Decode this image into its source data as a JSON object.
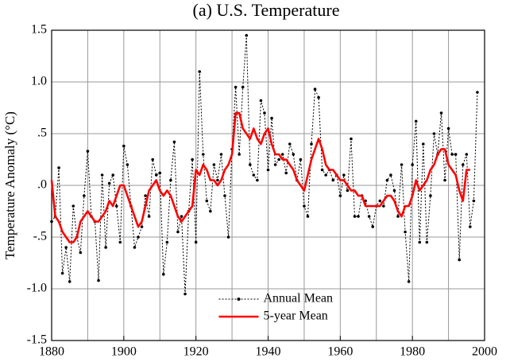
{
  "chart_data": {
    "type": "line",
    "title": "(a)  U.S. Temperature",
    "y_label": "Temperature Anomaly (°C)",
    "x": [
      1880,
      1881,
      1882,
      1883,
      1884,
      1885,
      1886,
      1887,
      1888,
      1889,
      1890,
      1891,
      1892,
      1893,
      1894,
      1895,
      1896,
      1897,
      1898,
      1899,
      1900,
      1901,
      1902,
      1903,
      1904,
      1905,
      1906,
      1907,
      1908,
      1909,
      1910,
      1911,
      1912,
      1913,
      1914,
      1915,
      1916,
      1917,
      1918,
      1919,
      1920,
      1921,
      1922,
      1923,
      1924,
      1925,
      1926,
      1927,
      1928,
      1929,
      1930,
      1931,
      1932,
      1933,
      1934,
      1935,
      1936,
      1937,
      1938,
      1939,
      1940,
      1941,
      1942,
      1943,
      1944,
      1945,
      1946,
      1947,
      1948,
      1949,
      1950,
      1951,
      1952,
      1953,
      1954,
      1955,
      1956,
      1957,
      1958,
      1959,
      1960,
      1961,
      1962,
      1963,
      1964,
      1965,
      1966,
      1967,
      1968,
      1969,
      1970,
      1971,
      1972,
      1973,
      1974,
      1975,
      1976,
      1977,
      1978,
      1979,
      1980,
      1981,
      1982,
      1983,
      1984,
      1985,
      1986,
      1987,
      1988,
      1989,
      1990,
      1991,
      1992,
      1993,
      1994,
      1995,
      1996,
      1997,
      1998
    ],
    "series": [
      {
        "name": "Annual Mean",
        "color": "#000000",
        "style": "dotted-markers",
        "values": [
          -0.35,
          -0.3,
          0.17,
          -0.85,
          -0.6,
          -0.93,
          -0.2,
          -0.5,
          -0.65,
          -0.1,
          0.33,
          -0.3,
          -0.35,
          -0.92,
          0.1,
          -0.6,
          0.02,
          0.1,
          -0.2,
          -0.55,
          0.38,
          0.2,
          -0.2,
          -0.6,
          -0.5,
          -0.4,
          -0.1,
          -0.3,
          0.25,
          0.1,
          0.12,
          -0.86,
          -0.55,
          0.05,
          0.42,
          -0.45,
          -0.3,
          -1.05,
          -0.25,
          0.25,
          -0.55,
          1.1,
          0.3,
          -0.15,
          -0.25,
          0.2,
          0.05,
          0.3,
          -0.1,
          -0.5,
          0.35,
          0.95,
          0.3,
          0.95,
          1.45,
          0.2,
          0.1,
          0.05,
          0.82,
          0.7,
          0.15,
          0.65,
          0.2,
          0.25,
          0.3,
          0.12,
          0.4,
          0.3,
          0.05,
          0.25,
          -0.2,
          -0.3,
          0.4,
          0.93,
          0.85,
          0.15,
          0.1,
          0.15,
          0.05,
          0.1,
          -0.1,
          0.1,
          -0.05,
          0.45,
          -0.3,
          -0.3,
          -0.1,
          -0.15,
          -0.3,
          -0.4,
          -0.2,
          -0.15,
          -0.2,
          0.05,
          0.1,
          -0.05,
          -0.3,
          0.2,
          -0.45,
          -0.93,
          0.2,
          0.62,
          -0.55,
          0.4,
          -0.55,
          -0.1,
          0.5,
          0.3,
          0.7,
          0.05,
          0.55,
          0.3,
          0.3,
          -0.72,
          0.2,
          0.3,
          -0.4,
          -0.15,
          0.9
        ]
      },
      {
        "name": "5-year Mean",
        "color": "#ff0000",
        "style": "solid",
        "values": [
          0.05,
          -0.3,
          -0.35,
          -0.45,
          -0.5,
          -0.55,
          -0.55,
          -0.5,
          -0.35,
          -0.3,
          -0.25,
          -0.3,
          -0.35,
          -0.35,
          -0.3,
          -0.25,
          -0.15,
          -0.2,
          -0.1,
          0.0,
          0.0,
          -0.1,
          -0.2,
          -0.3,
          -0.4,
          -0.35,
          -0.2,
          -0.05,
          0.0,
          0.05,
          -0.05,
          -0.1,
          -0.05,
          -0.1,
          -0.2,
          -0.3,
          -0.35,
          -0.3,
          -0.25,
          -0.2,
          0.15,
          0.1,
          0.2,
          0.15,
          0.05,
          0.05,
          0.0,
          0.05,
          0.15,
          0.2,
          0.3,
          0.7,
          0.7,
          0.55,
          0.5,
          0.45,
          0.55,
          0.45,
          0.4,
          0.5,
          0.55,
          0.4,
          0.3,
          0.3,
          0.25,
          0.25,
          0.2,
          0.15,
          0.05,
          0.0,
          -0.05,
          0.1,
          0.25,
          0.35,
          0.45,
          0.35,
          0.2,
          0.15,
          0.15,
          0.1,
          0.05,
          0.05,
          0.0,
          -0.05,
          -0.05,
          -0.1,
          -0.1,
          -0.2,
          -0.2,
          -0.2,
          -0.2,
          -0.2,
          -0.15,
          -0.1,
          -0.1,
          -0.15,
          -0.25,
          -0.3,
          -0.2,
          -0.2,
          -0.1,
          0.05,
          -0.05,
          0.0,
          0.05,
          0.15,
          0.2,
          0.3,
          0.35,
          0.35,
          0.2,
          0.15,
          0.1,
          -0.05,
          -0.15,
          0.15,
          0.15,
          null,
          null
        ]
      }
    ],
    "xlim": [
      1880,
      2000
    ],
    "xticks": [
      1880,
      1900,
      1920,
      1940,
      1960,
      1980,
      2000
    ],
    "x_gridlines": [
      1880,
      1890,
      1900,
      1910,
      1920,
      1930,
      1940,
      1950,
      1960,
      1970,
      1980,
      1990,
      2000
    ],
    "ylim": [
      -1.5,
      1.5
    ],
    "yticks": [
      1.5,
      {
        "value": 1,
        "label": "1.0"
      },
      {
        "value": 0.5,
        "label": ".5"
      },
      {
        "value": 0,
        "label": ".0"
      },
      {
        "value": -0.5,
        "label": "-.5"
      },
      {
        "value": -1,
        "label": "-1.0"
      },
      -1.5
    ],
    "grid": true,
    "legend": "lower center"
  }
}
